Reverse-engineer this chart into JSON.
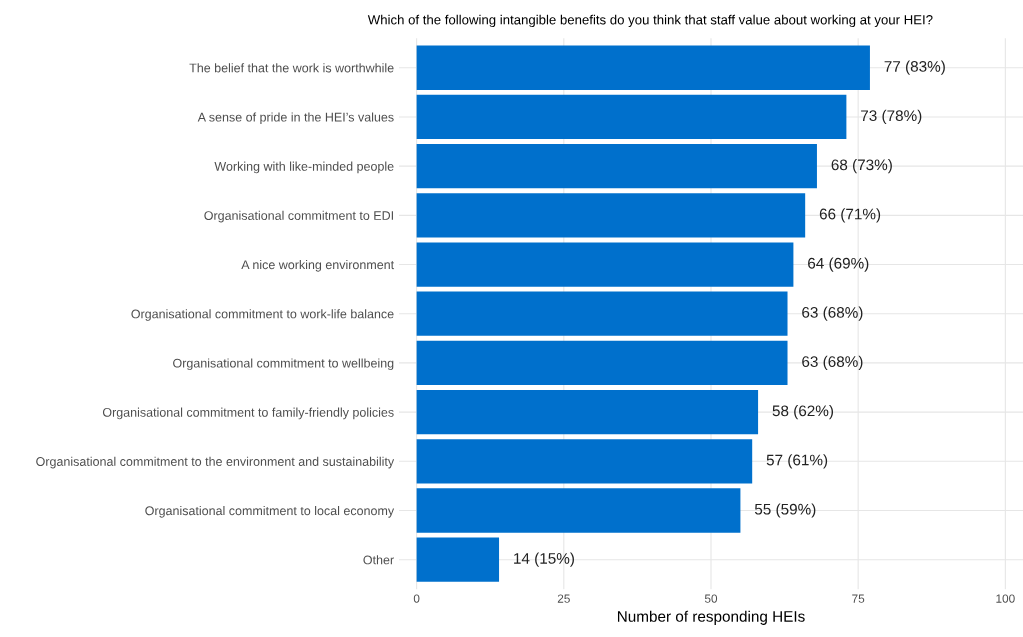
{
  "chart_data": {
    "type": "bar",
    "orientation": "horizontal",
    "title": "Which of the following intangible benefits do you think that staff value about working at your HEI?",
    "xlabel": "Number of responding HEIs",
    "categories": [
      "The belief that the work is worthwhile",
      "A sense of pride in the HEI’s values",
      "Working with like-minded people",
      "Organisational commitment to EDI",
      "A nice working environment",
      "Organisational commitment to work-life balance",
      "Organisational commitment to wellbeing",
      "Organisational commitment to family-friendly policies",
      "Organisational commitment to the environment and sustainability",
      "Organisational commitment to local economy",
      "Other"
    ],
    "values": [
      77,
      73,
      68,
      66,
      64,
      63,
      63,
      58,
      57,
      55,
      14
    ],
    "value_labels": [
      "77 (83%)",
      "73 (78%)",
      "68 (73%)",
      "66 (71%)",
      "64 (69%)",
      "63 (68%)",
      "63 (68%)",
      "58 (62%)",
      "57 (61%)",
      "55 (59%)",
      "14 (15%)"
    ],
    "color": "#0070cc",
    "xlim": [
      -3,
      103
    ],
    "xticks": [
      0,
      25,
      50,
      75,
      100
    ],
    "grid": true,
    "legend": false
  }
}
